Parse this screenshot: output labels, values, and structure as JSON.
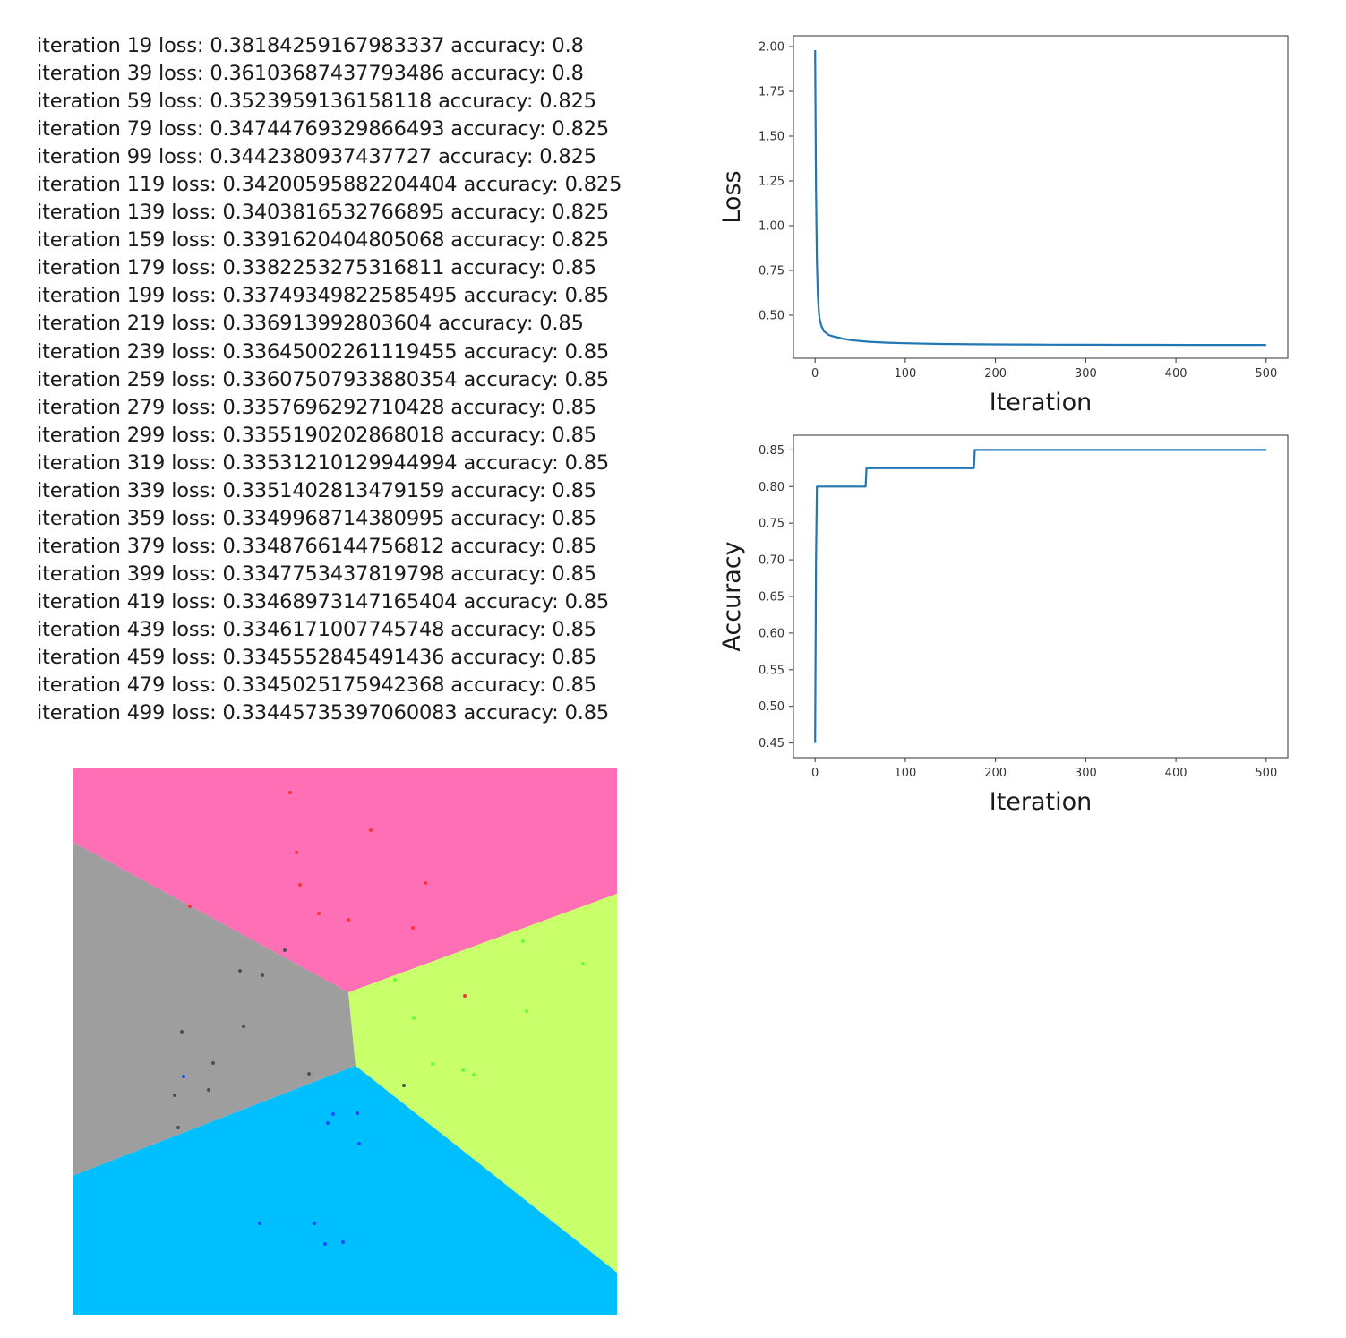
{
  "log": [
    {
      "iteration": 19,
      "loss": "0.38184259167983337",
      "accuracy": "0.8"
    },
    {
      "iteration": 39,
      "loss": "0.36103687437793486",
      "accuracy": "0.8"
    },
    {
      "iteration": 59,
      "loss": "0.352395913615 8118",
      "accuracy": "0.825"
    },
    {
      "iteration": 79,
      "loss": "0.34744769329866493",
      "accuracy": "0.825"
    },
    {
      "iteration": 99,
      "loss": "0.3442380937437727",
      "accuracy": "0.825"
    },
    {
      "iteration": 119,
      "loss": "0.34200595882204404",
      "accuracy": "0.825"
    },
    {
      "iteration": 139,
      "loss": "0.3403816532766895",
      "accuracy": "0.825"
    },
    {
      "iteration": 159,
      "loss": "0.3391620404805068",
      "accuracy": "0.825"
    },
    {
      "iteration": 179,
      "loss": "0.3382253275316811",
      "accuracy": "0.85"
    },
    {
      "iteration": 199,
      "loss": "0.33749349822585495",
      "accuracy": "0.85"
    },
    {
      "iteration": 219,
      "loss": "0.336913992803604",
      "accuracy": "0.85"
    },
    {
      "iteration": 239,
      "loss": "0.33645002261119455",
      "accuracy": "0.85"
    },
    {
      "iteration": 259,
      "loss": "0.33607507933880354",
      "accuracy": "0.85"
    },
    {
      "iteration": 279,
      "loss": "0.3357696292710428",
      "accuracy": "0.85"
    },
    {
      "iteration": 299,
      "loss": "0.3355190202868018",
      "accuracy": "0.85"
    },
    {
      "iteration": 319,
      "loss": "0.33531210129944994",
      "accuracy": "0.85"
    },
    {
      "iteration": 339,
      "loss": "0.3351402813479159",
      "accuracy": "0.85"
    },
    {
      "iteration": 359,
      "loss": "0.3349968714380995",
      "accuracy": "0.85"
    },
    {
      "iteration": 379,
      "loss": "0.3348766144756812",
      "accuracy": "0.85"
    },
    {
      "iteration": 399,
      "loss": "0.3347753437819798",
      "accuracy": "0.85"
    },
    {
      "iteration": 419,
      "loss": "0.33468973147165404",
      "accuracy": "0.85"
    },
    {
      "iteration": 439,
      "loss": "0.3346171007745748",
      "accuracy": "0.85"
    },
    {
      "iteration": 459,
      "loss": "0.3345552845491436",
      "accuracy": "0.85"
    },
    {
      "iteration": 479,
      "loss": "0.3345025175942368",
      "accuracy": "0.85"
    },
    {
      "iteration": 499,
      "loss": "0.33445735397060083",
      "accuracy": "0.85"
    }
  ],
  "log_words": {
    "iteration": "iteration",
    "loss": "loss:",
    "accuracy": "accuracy:"
  },
  "chart_data": [
    {
      "type": "line",
      "xlabel": "Iteration",
      "ylabel": "Loss",
      "xlim": [
        -24,
        524
      ],
      "ylim": [
        0.26,
        2.06
      ],
      "xticks": [
        0,
        100,
        200,
        300,
        400,
        500
      ],
      "yticks": [
        0.5,
        0.75,
        1.0,
        1.25,
        1.5,
        1.75,
        2.0
      ],
      "ytick_labels": [
        "0.50",
        "0.75",
        "1.00",
        "1.25",
        "1.50",
        "1.75",
        "2.00"
      ],
      "line_color": "#1f77b4",
      "series": [
        {
          "name": "loss",
          "x": [
            0,
            1,
            2,
            3,
            4,
            5,
            7,
            10,
            15,
            20,
            30,
            40,
            60,
            80,
            100,
            140,
            180,
            220,
            260,
            300,
            340,
            380,
            420,
            460,
            500
          ],
          "values": [
            1.98,
            1.2,
            0.8,
            0.62,
            0.53,
            0.48,
            0.44,
            0.41,
            0.39,
            0.382,
            0.37,
            0.361,
            0.352,
            0.347,
            0.344,
            0.34,
            0.338,
            0.337,
            0.336,
            0.3355,
            0.3351,
            0.3349,
            0.3347,
            0.3346,
            0.3345
          ]
        }
      ]
    },
    {
      "type": "line",
      "xlabel": "Iteration",
      "ylabel": "Accuracy",
      "xlim": [
        -24,
        524
      ],
      "ylim": [
        0.43,
        0.87
      ],
      "xticks": [
        0,
        100,
        200,
        300,
        400,
        500
      ],
      "yticks": [
        0.45,
        0.5,
        0.55,
        0.6,
        0.65,
        0.7,
        0.75,
        0.8,
        0.85
      ],
      "ytick_labels": [
        "0.45",
        "0.50",
        "0.55",
        "0.60",
        "0.65",
        "0.70",
        "0.75",
        "0.80",
        "0.85"
      ],
      "line_color": "#1f77b4",
      "series": [
        {
          "name": "accuracy",
          "x": [
            0,
            1,
            2,
            56,
            57,
            176,
            177,
            500
          ],
          "values": [
            0.45,
            0.7,
            0.8,
            0.8,
            0.825,
            0.825,
            0.85,
            0.85
          ]
        }
      ]
    }
  ],
  "regions": {
    "colors": {
      "pink": "#ff6fb5",
      "gray": "#9e9e9e",
      "green": "#c8ff6a",
      "blue": "#00bfff"
    },
    "point_colors": {
      "red": "#ff3333",
      "dark": "#505050",
      "bright_green": "#66ff33",
      "dark_blue": "#1a4dff"
    }
  }
}
